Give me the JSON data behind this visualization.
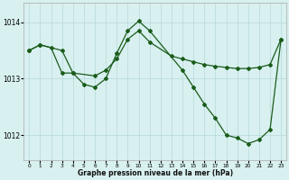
{
  "series1_x": [
    0,
    1,
    3,
    4,
    6,
    7,
    8,
    9,
    10,
    11,
    13,
    14,
    15,
    16,
    17,
    18,
    19,
    20,
    21,
    22,
    23
  ],
  "series1_y": [
    1013.5,
    1013.6,
    1013.5,
    1013.1,
    1013.05,
    1013.15,
    1013.35,
    1013.7,
    1013.85,
    1013.65,
    1013.4,
    1013.35,
    1013.3,
    1013.25,
    1013.22,
    1013.2,
    1013.18,
    1013.18,
    1013.2,
    1013.25,
    1013.7
  ],
  "series2_x": [
    0,
    1,
    2,
    3,
    4,
    5,
    6,
    7,
    8,
    9,
    10,
    11,
    14,
    15,
    16,
    17,
    18,
    19,
    20,
    21,
    22,
    23
  ],
  "series2_y": [
    1013.5,
    1013.6,
    1013.55,
    1013.1,
    1013.1,
    1012.9,
    1012.85,
    1013.0,
    1013.45,
    1013.85,
    1014.02,
    1013.85,
    1013.15,
    1012.85,
    1012.55,
    1012.3,
    1012.0,
    1011.95,
    1011.85,
    1011.92,
    1012.1,
    1013.7
  ],
  "line_color": "#1a5c1a",
  "bg_color": "#d8f0f0",
  "grid_color": "#b8d8d8",
  "xlabel": "Graphe pression niveau de la mer (hPa)",
  "yticks": [
    1012,
    1013,
    1014
  ],
  "xlim": [
    -0.5,
    23.5
  ],
  "ylim": [
    1011.55,
    1014.35
  ]
}
